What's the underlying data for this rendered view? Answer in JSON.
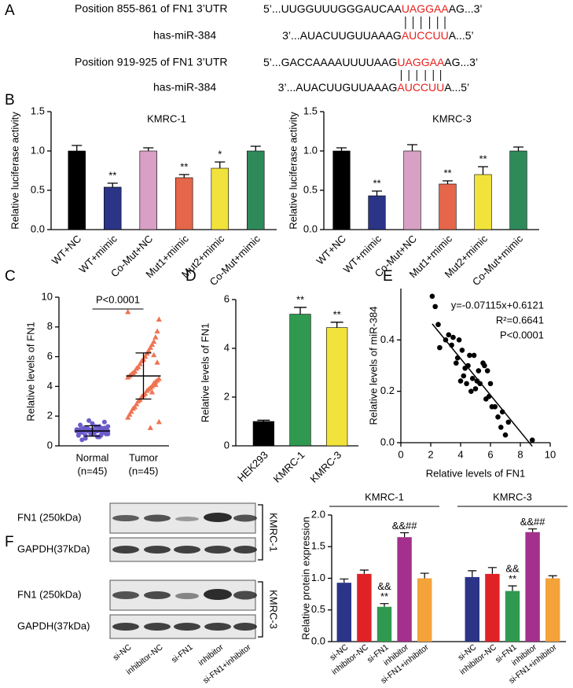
{
  "panels": [
    "A",
    "B",
    "C",
    "D",
    "E",
    "F"
  ],
  "alignment": [
    {
      "label": "Position 855-861  of FN1 3’UTR",
      "sequence": [
        "5’...UUGGUUUGGGAUCAA",
        "UAGGAA",
        "AG...3’"
      ]
    },
    {
      "label": "has-miR-384",
      "sequence": [
        "3’...AUACUUGUUAAAG",
        "AUCCUU",
        "A...5’"
      ]
    },
    {
      "label": "Position 919-925 of FN1 3’UTR",
      "sequence": [
        "5’...GACCAAAAUUUUAAG",
        "UAGGAA",
        "AG...3’"
      ]
    },
    {
      "label": "has-miR-384",
      "sequence": [
        "3’...AUACUUGUUAAAG",
        "AUCCUU",
        "A...5’"
      ]
    }
  ],
  "highlight_color": "#e8201c",
  "blot": {
    "row_labels": [
      "FN1 (250kDa)",
      "GAPDH(37kDa)",
      "FN1 (250kDa)",
      "GAPDH(37kDa)"
    ],
    "group_labels": [
      "KMRC-1",
      "KMRC-3"
    ],
    "lanes": [
      "si-NC",
      "inhibitor-NC",
      "si-FN1",
      "inhibitor",
      "si-FN1+inhibitor"
    ]
  },
  "chart_data": [
    {
      "type": "bar",
      "title": "KMRC-1",
      "ylabel": "Relative luciferase activity",
      "categories": [
        "WT+NC",
        "WT+mimic",
        "Co-Mut+NC",
        "Mut1+mimic",
        "Mut2+mimic",
        "Co-Mut+mimic"
      ],
      "values": [
        1.0,
        0.54,
        1.0,
        0.66,
        0.78,
        1.0
      ],
      "errors": [
        0.07,
        0.05,
        0.04,
        0.04,
        0.08,
        0.06
      ],
      "colors": [
        "#000000",
        "#2b3486",
        "#d7a0c4",
        "#e5664a",
        "#f2e33c",
        "#2f8a5a"
      ],
      "significance": [
        null,
        "**",
        null,
        "**",
        "*",
        null
      ],
      "ylim": [
        0,
        1.5
      ],
      "yticks": [
        {
          "value": 0,
          "label": "0.0"
        },
        0.5,
        {
          "value": 1,
          "label": "1.0"
        },
        1.5
      ]
    },
    {
      "type": "bar",
      "title": "KMRC-3",
      "ylabel": "Relative luciferase activity",
      "categories": [
        "WT+NC",
        "WT+mimic",
        "Co-Mut+NC",
        "Mut1+mimic",
        "Mut2+mimic",
        "Co-Mut+mimic"
      ],
      "values": [
        1.0,
        0.43,
        1.0,
        0.58,
        0.7,
        1.0
      ],
      "errors": [
        0.04,
        0.06,
        0.08,
        0.04,
        0.1,
        0.05
      ],
      "colors": [
        "#000000",
        "#2b3486",
        "#d7a0c4",
        "#e5664a",
        "#f2e33c",
        "#2f8a5a"
      ],
      "significance": [
        null,
        "**",
        null,
        "**",
        "**",
        null
      ],
      "ylim": [
        0,
        1.5
      ],
      "yticks": [
        {
          "value": 0,
          "label": "0.0"
        },
        0.5,
        {
          "value": 1,
          "label": "1.0"
        },
        1.5
      ]
    },
    {
      "type": "strip",
      "ylabel": "Relative levels of FN1",
      "categories": [
        "Normal",
        "Tumor"
      ],
      "category_notes": [
        "(n=45)",
        "(n=45)"
      ],
      "groups": [
        {
          "color": "#6a5cc9",
          "mean": 1.0,
          "sd": 0.35,
          "values": [
            1.0,
            0.8,
            1.2,
            0.9,
            1.1,
            0.7,
            1.3,
            0.6,
            1.0,
            0.9,
            1.5,
            0.8,
            1.1,
            1.2,
            0.5,
            1.0,
            0.9,
            1.4,
            0.7,
            1.1,
            1.0,
            0.8,
            1.6,
            0.9,
            1.2,
            0.6,
            1.0,
            1.3,
            0.8,
            1.1,
            0.9,
            1.7,
            1.0,
            0.7,
            1.2,
            0.4,
            1.1,
            0.9,
            1.0,
            1.3,
            0.8,
            1.2,
            0.9,
            1.0,
            1.1
          ]
        },
        {
          "color": "#ef7352",
          "mean": 4.7,
          "sd": 1.55,
          "values": [
            9.0,
            8.5,
            7.7,
            7.3,
            7.0,
            6.8,
            6.6,
            6.4,
            6.2,
            6.0,
            5.8,
            5.7,
            5.5,
            5.3,
            5.2,
            5.0,
            4.9,
            4.8,
            4.7,
            4.6,
            4.5,
            4.4,
            4.3,
            4.2,
            4.0,
            3.9,
            3.8,
            3.7,
            3.5,
            3.4,
            3.3,
            3.1,
            3.0,
            2.8,
            2.6,
            2.5,
            2.3,
            2.1,
            1.9,
            1.6,
            5.6,
            4.1,
            6.1,
            3.6,
            1.2
          ]
        }
      ],
      "annotation": "P<0.0001",
      "ylim": [
        0,
        10
      ],
      "yticks": [
        0,
        2,
        4,
        6,
        8,
        10
      ]
    },
    {
      "type": "bar",
      "ylabel": "Relative levels of FN1",
      "categories": [
        "HEK293",
        "KMRC-1",
        "KMRC-3"
      ],
      "values": [
        1.0,
        5.4,
        4.85
      ],
      "errors": [
        0.05,
        0.28,
        0.22
      ],
      "colors": [
        "#000000",
        "#2f9a4f",
        "#f2e33c"
      ],
      "significance": [
        null,
        "**",
        "**"
      ],
      "ylim": [
        0,
        6
      ],
      "yticks": [
        0,
        2,
        4,
        6
      ]
    },
    {
      "type": "scatter",
      "xlabel": "Relative levels of FN1",
      "ylabel": "Relative levels of miR-384",
      "x": [
        2.1,
        2.3,
        2.5,
        2.6,
        3.0,
        3.2,
        3.4,
        3.5,
        3.7,
        3.8,
        3.9,
        4.0,
        4.1,
        4.2,
        4.3,
        4.4,
        4.5,
        4.6,
        4.7,
        4.8,
        4.9,
        5.0,
        5.1,
        5.2,
        5.3,
        5.5,
        5.6,
        5.7,
        5.8,
        5.9,
        6.0,
        6.1,
        6.3,
        6.5,
        6.7,
        6.8,
        7.0,
        7.2,
        8.8
      ],
      "values": [
        0.57,
        0.53,
        0.46,
        0.37,
        0.4,
        0.42,
        0.38,
        0.41,
        0.31,
        0.33,
        0.4,
        0.24,
        0.36,
        0.26,
        0.29,
        0.23,
        0.3,
        0.34,
        0.2,
        0.25,
        0.34,
        0.21,
        0.24,
        0.28,
        0.23,
        0.31,
        0.3,
        0.17,
        0.28,
        0.18,
        0.23,
        0.14,
        0.14,
        0.1,
        0.06,
        0.12,
        0.03,
        0.08,
        0.01
      ],
      "color": "#000000",
      "fit": {
        "slope": -0.07115,
        "intercept": 0.6121
      },
      "annotations": [
        "y=-0.07115x+0.6121",
        "R²=0.6641",
        "P<0.0001"
      ],
      "xlim": [
        0,
        10
      ],
      "xticks": [
        0,
        2,
        4,
        6,
        8,
        10
      ],
      "ylim": [
        0,
        0.6
      ],
      "yticks": [
        {
          "value": 0,
          "label": "0.0"
        },
        0.2,
        0.4
      ]
    },
    {
      "type": "grouped_bar",
      "ylabel": "Relative protein expression",
      "categories": [
        "si-NC",
        "inhibitor-NC",
        "si-FN1",
        "inhibitor",
        "si-FN1+inhibitor"
      ],
      "colors": [
        "#2b3486",
        "#e02226",
        "#2f9a4f",
        "#a3308d",
        "#f4a23a"
      ],
      "series": [
        {
          "name": "KMRC-1",
          "values": [
            0.93,
            1.07,
            0.55,
            1.65,
            1.0
          ],
          "errors": [
            0.06,
            0.06,
            0.05,
            0.07,
            0.08
          ],
          "significance": [
            null,
            null,
            [
              "&&",
              "**"
            ],
            [
              "&&##"
            ],
            null
          ]
        },
        {
          "name": "KMRC-3",
          "values": [
            1.02,
            1.07,
            0.8,
            1.73,
            1.0
          ],
          "errors": [
            0.1,
            0.1,
            0.08,
            0.05,
            0.04
          ],
          "significance": [
            null,
            null,
            [
              "&&",
              "**"
            ],
            [
              "&&##"
            ],
            null
          ]
        }
      ],
      "ylim": [
        0,
        2
      ],
      "yticks": [
        {
          "value": 0,
          "label": "0.0"
        },
        0.5,
        {
          "value": 1,
          "label": "1.0"
        },
        1.5,
        {
          "value": 2,
          "label": "2.0"
        }
      ]
    }
  ]
}
